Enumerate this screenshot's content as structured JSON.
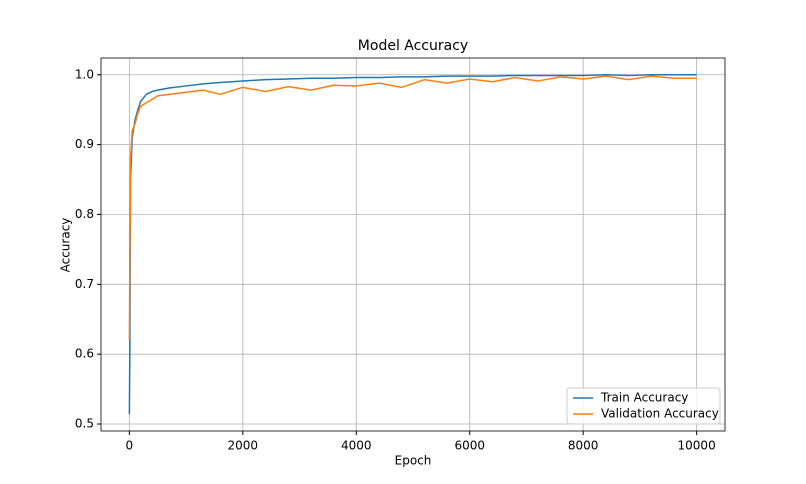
{
  "chart_data": {
    "type": "line",
    "title": "Model Accuracy",
    "x_label": "Epoch",
    "y_label": "Accuracy",
    "x": [
      0,
      10,
      20,
      50,
      100,
      150,
      200,
      300,
      400,
      500,
      700,
      1000,
      1300,
      1600,
      2000,
      2400,
      2800,
      3200,
      3600,
      4000,
      4400,
      4800,
      5200,
      5600,
      6000,
      6400,
      6800,
      7200,
      7600,
      8000,
      8400,
      8800,
      9200,
      9600,
      9999
    ],
    "series": [
      {
        "name": "Train Accuracy",
        "color": "#1f77b4",
        "values": [
          0.514,
          0.62,
          0.85,
          0.91,
          0.935,
          0.95,
          0.962,
          0.972,
          0.976,
          0.978,
          0.981,
          0.984,
          0.987,
          0.989,
          0.991,
          0.993,
          0.994,
          0.995,
          0.995,
          0.996,
          0.996,
          0.997,
          0.997,
          0.998,
          0.998,
          0.998,
          0.999,
          0.999,
          0.999,
          0.999,
          1.0,
          0.999,
          1.0,
          1.0,
          1.0
        ]
      },
      {
        "name": "Validation Accuracy",
        "color": "#ff7f0e",
        "values": [
          0.62,
          0.75,
          0.88,
          0.92,
          0.93,
          0.945,
          0.955,
          0.96,
          0.965,
          0.97,
          0.972,
          0.975,
          0.978,
          0.972,
          0.982,
          0.976,
          0.983,
          0.978,
          0.985,
          0.984,
          0.988,
          0.982,
          0.993,
          0.988,
          0.994,
          0.99,
          0.996,
          0.991,
          0.997,
          0.994,
          0.998,
          0.993,
          0.998,
          0.995,
          0.995
        ]
      }
    ],
    "xlim": [
      -500,
      10500
    ],
    "ylim": [
      0.49,
      1.024
    ],
    "xticks": [
      0,
      2000,
      4000,
      6000,
      8000,
      10000
    ],
    "yticks": [
      0.5,
      0.6,
      0.7,
      0.8,
      0.9,
      {
        "value": 1,
        "label": "1.0"
      }
    ],
    "grid": true,
    "legend": "lower right"
  }
}
